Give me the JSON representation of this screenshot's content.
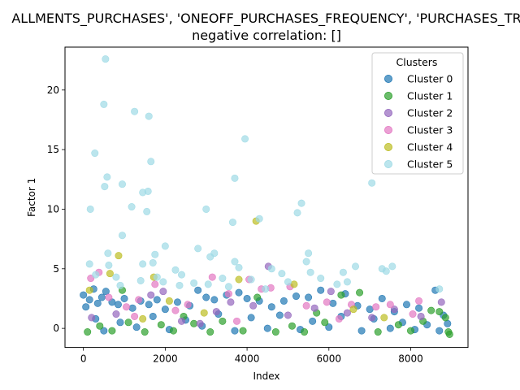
{
  "chart_data": {
    "type": "scatter",
    "title_line1": "ALLMENTS_PURCHASES', 'ONEOFF_PURCHASES_FREQUENCY', 'PURCHASES_TR",
    "title_line2": "negative correlation: []",
    "xlabel": "Index",
    "ylabel": "Factor 1",
    "xlim": [
      -450,
      9400
    ],
    "ylim": [
      -1.6,
      23.6
    ],
    "xticks": [
      0,
      2000,
      4000,
      6000,
      8000
    ],
    "yticks": [
      0,
      5,
      10,
      15,
      20
    ],
    "grid": false,
    "legend": {
      "title": "Clusters",
      "placement": "top-right"
    },
    "series": [
      {
        "name": "Cluster 0",
        "color": "#1f77b4",
        "points": [
          [
            0,
            2.8
          ],
          [
            60,
            1.8
          ],
          [
            150,
            2.4
          ],
          [
            250,
            3.3
          ],
          [
            350,
            2.1
          ],
          [
            450,
            2.6
          ],
          [
            550,
            3.1
          ],
          [
            700,
            2.2
          ],
          [
            850,
            2.0
          ],
          [
            1000,
            2.5
          ],
          [
            1200,
            1.7
          ],
          [
            1400,
            2.3
          ],
          [
            1600,
            2.0
          ],
          [
            1800,
            2.4
          ],
          [
            2000,
            1.6
          ],
          [
            2300,
            2.2
          ],
          [
            2600,
            1.9
          ],
          [
            2800,
            3.2
          ],
          [
            3000,
            2.6
          ],
          [
            3200,
            2.4
          ],
          [
            3500,
            2.8
          ],
          [
            3800,
            3.0
          ],
          [
            4000,
            2.5
          ],
          [
            4300,
            2.3
          ],
          [
            4600,
            1.8
          ],
          [
            4900,
            2.3
          ],
          [
            5200,
            2.7
          ],
          [
            5500,
            2.6
          ],
          [
            5800,
            3.2
          ],
          [
            6100,
            2.1
          ],
          [
            6400,
            2.9
          ],
          [
            6700,
            1.9
          ],
          [
            7000,
            1.6
          ],
          [
            7300,
            2.5
          ],
          [
            7600,
            1.4
          ],
          [
            7900,
            2.0
          ],
          [
            8200,
            1.7
          ],
          [
            8600,
            3.2
          ],
          [
            8800,
            1.1
          ],
          [
            8900,
            0.4
          ],
          [
            300,
            0.8
          ],
          [
            900,
            0.5
          ],
          [
            1700,
            1.0
          ],
          [
            2500,
            0.7
          ],
          [
            3300,
            1.2
          ],
          [
            4100,
            0.9
          ],
          [
            4800,
            1.1
          ],
          [
            5600,
            0.6
          ],
          [
            6300,
            1.0
          ],
          [
            7100,
            0.8
          ],
          [
            7800,
            0.5
          ],
          [
            8400,
            0.3
          ],
          [
            500,
            -0.2
          ],
          [
            1300,
            0.1
          ],
          [
            2100,
            -0.1
          ],
          [
            2900,
            0.2
          ],
          [
            3700,
            -0.2
          ],
          [
            4500,
            0.0
          ],
          [
            5300,
            -0.1
          ],
          [
            6000,
            0.1
          ],
          [
            6800,
            -0.2
          ],
          [
            7500,
            0.0
          ],
          [
            8100,
            -0.1
          ],
          [
            8700,
            -0.2
          ]
        ]
      },
      {
        "name": "Cluster 1",
        "color": "#2ca02c",
        "points": [
          [
            100,
            -0.3
          ],
          [
            400,
            0.2
          ],
          [
            700,
            -0.2
          ],
          [
            950,
            3.2
          ],
          [
            1100,
            0.5
          ],
          [
            1500,
            -0.3
          ],
          [
            1900,
            0.3
          ],
          [
            2200,
            -0.2
          ],
          [
            2700,
            0.4
          ],
          [
            3100,
            -0.3
          ],
          [
            3400,
            0.6
          ],
          [
            3900,
            -0.2
          ],
          [
            4250,
            2.6
          ],
          [
            4700,
            -0.3
          ],
          [
            5100,
            0.2
          ],
          [
            5400,
            -0.3
          ],
          [
            5900,
            0.5
          ],
          [
            6300,
            2.8
          ],
          [
            6750,
            3.0
          ],
          [
            7200,
            -0.3
          ],
          [
            7700,
            0.3
          ],
          [
            8000,
            -0.2
          ],
          [
            8500,
            1.5
          ],
          [
            8700,
            1.4
          ],
          [
            8850,
            0.9
          ],
          [
            8920,
            -0.3
          ],
          [
            8950,
            -0.5
          ],
          [
            2450,
            1.0
          ],
          [
            5700,
            1.3
          ],
          [
            8300,
            0.6
          ]
        ]
      },
      {
        "name": "Cluster 2",
        "color": "#9467bd",
        "points": [
          [
            200,
            0.9
          ],
          [
            800,
            1.2
          ],
          [
            1650,
            2.8
          ],
          [
            1950,
            3.1
          ],
          [
            2400,
            0.6
          ],
          [
            3250,
            1.4
          ],
          [
            3600,
            2.2
          ],
          [
            4150,
            1.9
          ],
          [
            4520,
            5.2
          ],
          [
            5000,
            1.1
          ],
          [
            5650,
            1.7
          ],
          [
            6050,
            3.1
          ],
          [
            6450,
            1.3
          ],
          [
            7050,
            0.9
          ],
          [
            7600,
            1.6
          ],
          [
            8250,
            1.0
          ],
          [
            8750,
            2.2
          ],
          [
            2850,
            0.4
          ]
        ]
      },
      {
        "name": "Cluster 3",
        "color": "#e377c2",
        "points": [
          [
            180,
            4.2
          ],
          [
            380,
            4.7
          ],
          [
            620,
            2.6
          ],
          [
            1050,
            1.8
          ],
          [
            1350,
            2.4
          ],
          [
            1750,
            3.7
          ],
          [
            2250,
            1.5
          ],
          [
            2550,
            2.0
          ],
          [
            3150,
            4.3
          ],
          [
            3550,
            2.9
          ],
          [
            4050,
            4.1
          ],
          [
            4350,
            3.3
          ],
          [
            4580,
            3.4
          ],
          [
            5050,
            3.5
          ],
          [
            5450,
            1.9
          ],
          [
            5950,
            2.2
          ],
          [
            6550,
            2.0
          ],
          [
            7150,
            1.8
          ],
          [
            7500,
            2.0
          ],
          [
            8200,
            2.3
          ],
          [
            8050,
            1.2
          ],
          [
            1250,
            1.0
          ],
          [
            3750,
            0.6
          ],
          [
            6250,
            0.8
          ]
        ]
      },
      {
        "name": "Cluster 4",
        "color": "#bcbd22",
        "points": [
          [
            150,
            3.2
          ],
          [
            650,
            4.6
          ],
          [
            860,
            6.1
          ],
          [
            1720,
            4.3
          ],
          [
            2100,
            2.3
          ],
          [
            3800,
            4.1
          ],
          [
            4220,
            9.0
          ],
          [
            5150,
            3.7
          ],
          [
            6600,
            1.6
          ],
          [
            7350,
            0.9
          ],
          [
            2950,
            1.3
          ],
          [
            1450,
            0.8
          ]
        ]
      },
      {
        "name": "Cluster 5",
        "color": "#9edae5",
        "points": [
          [
            540,
            22.6
          ],
          [
            500,
            18.8
          ],
          [
            1250,
            18.2
          ],
          [
            1600,
            17.8
          ],
          [
            280,
            14.7
          ],
          [
            1650,
            14.0
          ],
          [
            3950,
            15.9
          ],
          [
            580,
            12.7
          ],
          [
            950,
            12.1
          ],
          [
            520,
            11.9
          ],
          [
            1450,
            11.4
          ],
          [
            1580,
            11.5
          ],
          [
            3700,
            12.6
          ],
          [
            7050,
            12.2
          ],
          [
            170,
            10.0
          ],
          [
            1180,
            10.2
          ],
          [
            1550,
            9.8
          ],
          [
            3000,
            10.0
          ],
          [
            5330,
            10.5
          ],
          [
            5230,
            9.7
          ],
          [
            3650,
            8.9
          ],
          [
            4300,
            9.2
          ],
          [
            950,
            7.8
          ],
          [
            600,
            6.3
          ],
          [
            1750,
            6.2
          ],
          [
            2000,
            6.9
          ],
          [
            2800,
            6.7
          ],
          [
            3200,
            6.3
          ],
          [
            3100,
            6.0
          ],
          [
            5500,
            6.3
          ],
          [
            150,
            5.4
          ],
          [
            620,
            5.3
          ],
          [
            1450,
            5.4
          ],
          [
            1700,
            5.5
          ],
          [
            2250,
            4.9
          ],
          [
            3700,
            5.6
          ],
          [
            3800,
            5.1
          ],
          [
            4600,
            5.0
          ],
          [
            5450,
            5.6
          ],
          [
            5550,
            4.7
          ],
          [
            6650,
            5.2
          ],
          [
            7300,
            5.0
          ],
          [
            7550,
            5.2
          ],
          [
            7400,
            4.8
          ],
          [
            300,
            4.5
          ],
          [
            800,
            4.3
          ],
          [
            1400,
            4.0
          ],
          [
            1800,
            4.3
          ],
          [
            2400,
            4.5
          ],
          [
            3400,
            4.2
          ],
          [
            4100,
            4.1
          ],
          [
            4850,
            4.6
          ],
          [
            5800,
            4.2
          ],
          [
            6350,
            4.7
          ],
          [
            6200,
            3.7
          ],
          [
            1950,
            3.9
          ],
          [
            2350,
            3.6
          ],
          [
            2700,
            3.8
          ],
          [
            3050,
            3.7
          ],
          [
            5000,
            3.9
          ],
          [
            8700,
            3.3
          ],
          [
            6450,
            3.9
          ],
          [
            900,
            3.6
          ],
          [
            3550,
            3.5
          ],
          [
            4450,
            3.3
          ]
        ]
      }
    ]
  }
}
